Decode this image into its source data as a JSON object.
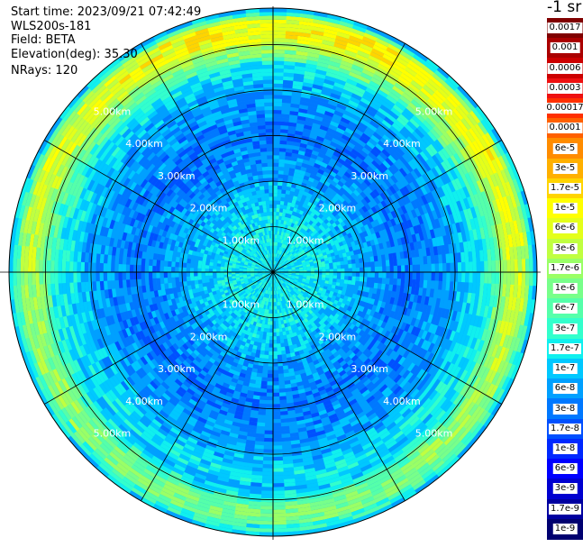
{
  "header": {
    "start_time": "Start time: 2023/09/21 07:42:49",
    "device": "WLS200s-181",
    "field": "Field: BETA",
    "elevation": "Elevation(deg): 35.30",
    "nrays": "NRays: 120"
  },
  "colorbar": {
    "units": "-1 sr",
    "labels": [
      "0.0017",
      "0.001",
      "0.0006",
      "0.0003",
      "0.00017",
      "0.0001",
      "6e-5",
      "3e-5",
      "1.7e-5",
      "1e-5",
      "6e-6",
      "3e-6",
      "1.7e-6",
      "1e-6",
      "6e-7",
      "3e-7",
      "1.7e-7",
      "1e-7",
      "6e-8",
      "3e-8",
      "1.7e-8",
      "1e-8",
      "6e-9",
      "3e-9",
      "1.7e-9",
      "1e-9"
    ],
    "colors": [
      "#800000",
      "#aa0000",
      "#cc0000",
      "#ee1010",
      "#ff3000",
      "#ff6000",
      "#ff8c00",
      "#ffb000",
      "#ffd400",
      "#ffff00",
      "#e4ff1a",
      "#c0ff40",
      "#9aff66",
      "#78ff8a",
      "#55ffaa",
      "#33ffcc",
      "#10f0ee",
      "#00c8ff",
      "#00a0ff",
      "#0078ff",
      "#0050ff",
      "#0028ff",
      "#0000ff",
      "#0000d0",
      "#0000a0",
      "#000070"
    ]
  },
  "chart_data": {
    "type": "heatmap",
    "projection": "polar (PPI scan)",
    "field": "BETA",
    "range_rings_km": [
      1,
      2,
      3,
      4,
      5
    ],
    "range_labels": [
      "1.00km",
      "2.00km",
      "3.00km",
      "4.00km",
      "5.00km"
    ],
    "max_range_km": 5.8,
    "azimuth_lines_deg": [
      0,
      30,
      60,
      90,
      120,
      150,
      180,
      210,
      240,
      270,
      300,
      330
    ],
    "n_rays": 120,
    "elevation_deg": 35.3,
    "range_profile": {
      "range_km": [
        0.2,
        1.0,
        2.0,
        3.0,
        4.0,
        4.8,
        5.2,
        5.5,
        5.8
      ],
      "beta_sr-1m-1": [
        1.7e-07,
        1.7e-07,
        6e-08,
        3e-08,
        6e-08,
        3e-07,
        3e-06,
        3e-06,
        6e-08
      ]
    },
    "colorscale": "jet, 1e-9 to 0.0017"
  }
}
